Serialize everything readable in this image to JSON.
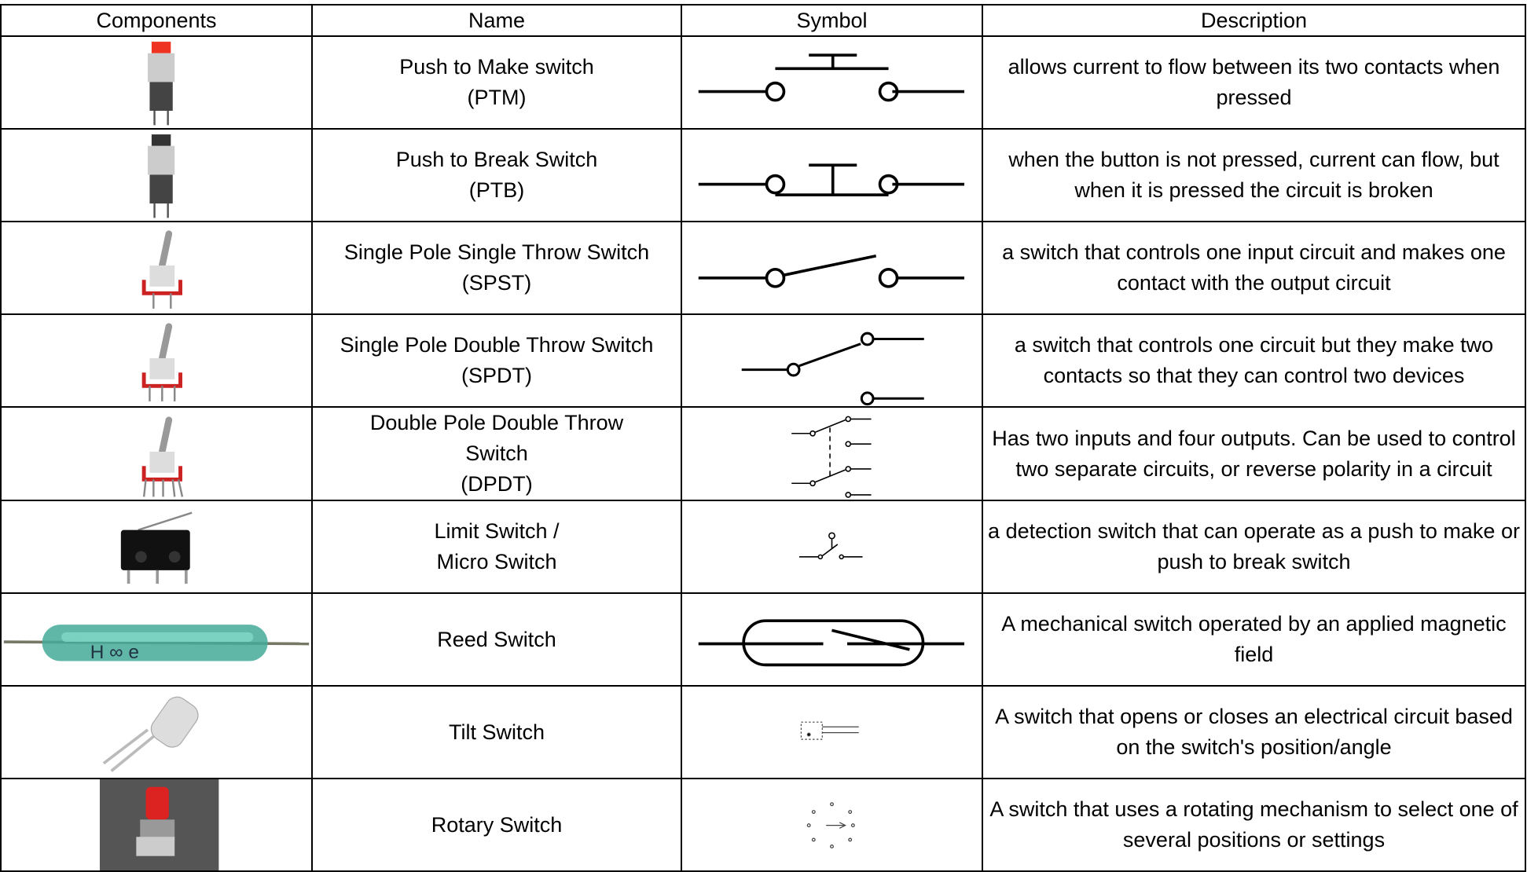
{
  "table": {
    "headers": [
      "Components",
      "Name",
      "Symbol",
      "Description"
    ],
    "rows": [
      {
        "name": [
          "Push to Make switch",
          "(PTM)"
        ],
        "description": "allows current to flow between its two contacts when pressed"
      },
      {
        "name": [
          "Push to Break Switch",
          "(PTB)"
        ],
        "description": "when the button is not pressed, current can flow, but when it is pressed the circuit is broken"
      },
      {
        "name": [
          "Single Pole Single Throw Switch",
          "(SPST)"
        ],
        "description": "a switch that controls one input circuit and makes one contact with the output circuit"
      },
      {
        "name": [
          "Single Pole Double Throw Switch",
          "(SPDT)"
        ],
        "description": "a switch that controls one circuit but they make two contacts so that they can control two devices"
      },
      {
        "name": [
          "Double Pole Double Throw",
          "Switch",
          "(DPDT)"
        ],
        "description": "Has two inputs and four outputs. Can be used to control two separate circuits, or reverse polarity in a circuit"
      },
      {
        "name": [
          "Limit Switch /",
          "Micro Switch"
        ],
        "description": "a detection switch that can operate as a push to make or push to break switch"
      },
      {
        "name": [
          "Reed Switch"
        ],
        "description": "A mechanical switch operated by an applied magnetic field"
      },
      {
        "name": [
          "Tilt Switch"
        ],
        "description": "A switch that opens or closes an electrical circuit based on the switch's position/angle"
      },
      {
        "name": [
          "Rotary Switch"
        ],
        "description": "A switch that uses a rotating mechanism to select one of several positions or settings"
      }
    ]
  }
}
